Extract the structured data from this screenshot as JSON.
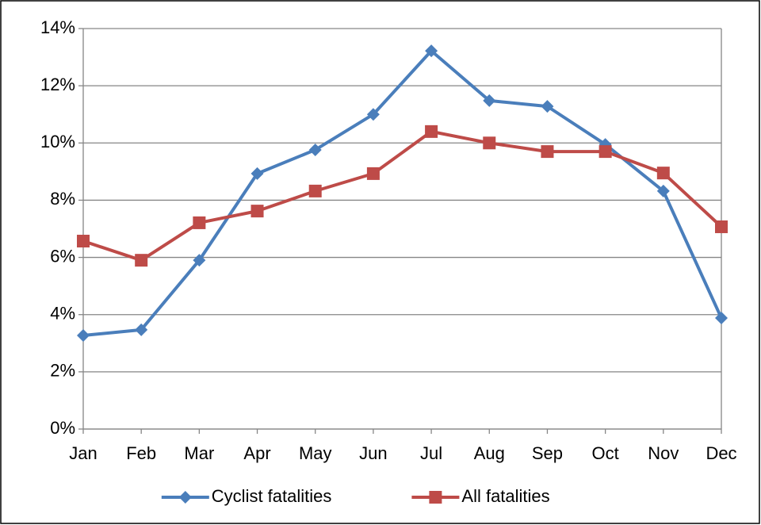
{
  "chart_data": {
    "type": "line",
    "categories": [
      "Jan",
      "Feb",
      "Mar",
      "Apr",
      "May",
      "Jun",
      "Jul",
      "Aug",
      "Sep",
      "Oct",
      "Nov",
      "Dec"
    ],
    "series": [
      {
        "name": "Cyclist fatalities",
        "color": "#4a7ebb",
        "marker": "diamond",
        "values": [
          3.27,
          3.47,
          5.9,
          8.93,
          9.76,
          11.0,
          13.22,
          11.48,
          11.28,
          9.95,
          8.32,
          3.88
        ]
      },
      {
        "name": "All fatalities",
        "color": "#be4b48",
        "marker": "square",
        "values": [
          6.57,
          5.9,
          7.21,
          7.62,
          8.32,
          8.93,
          10.4,
          10.0,
          9.7,
          9.7,
          8.95,
          7.07
        ]
      }
    ],
    "ylim": [
      0,
      14
    ],
    "yticks": [
      {
        "value": 0,
        "label": "0%"
      },
      {
        "value": 2,
        "label": "2%"
      },
      {
        "value": 4,
        "label": "4%"
      },
      {
        "value": 6,
        "label": "6%"
      },
      {
        "value": 8,
        "label": "8%"
      },
      {
        "value": 10,
        "label": "10%"
      },
      {
        "value": 12,
        "label": "12%"
      },
      {
        "value": 14,
        "label": "14%"
      }
    ],
    "grid": true,
    "legend": "bottom"
  }
}
